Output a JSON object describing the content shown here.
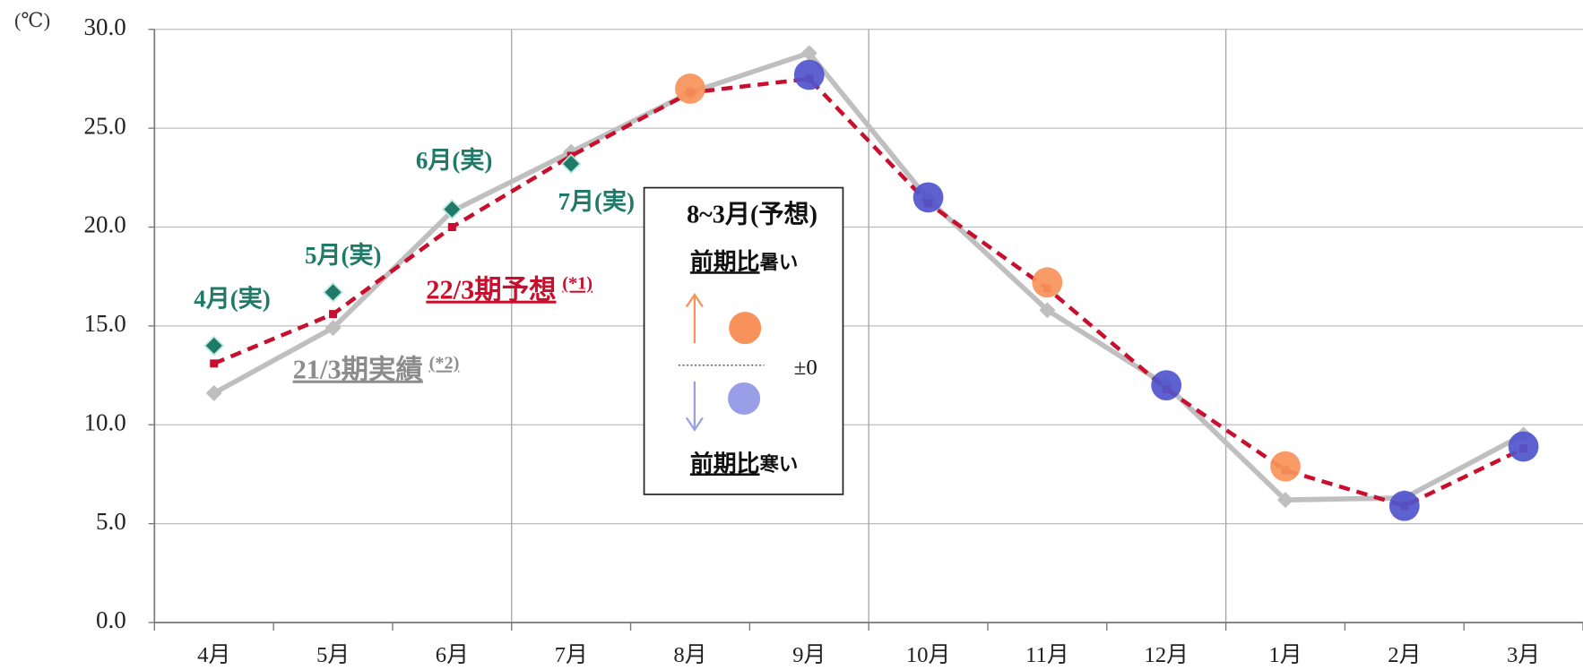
{
  "chart_data": {
    "type": "line",
    "unit_label": "(℃)",
    "categories": [
      "4月",
      "5月",
      "6月",
      "7月",
      "8月",
      "9月",
      "10月",
      "11月",
      "12月",
      "1月",
      "2月",
      "3月"
    ],
    "series": [
      {
        "name": "21/3期実績",
        "note": "(*2)",
        "color": "#bfbfbf",
        "dashed": false,
        "values": [
          11.6,
          14.9,
          20.8,
          23.8,
          26.8,
          28.8,
          21.4,
          15.8,
          12.0,
          6.2,
          6.3,
          9.5
        ]
      },
      {
        "name": "22/3期予想",
        "note": "(*1)",
        "color": "#c8102e",
        "dashed": true,
        "values": [
          13.1,
          15.6,
          20.0,
          23.6,
          26.8,
          27.5,
          21.2,
          16.9,
          11.8,
          7.7,
          5.9,
          8.8
        ]
      }
    ],
    "actual_marks": {
      "color": "#1f7a68",
      "values": [
        14.0,
        16.7,
        20.9,
        23.2,
        null,
        null,
        null,
        null,
        null,
        null,
        null,
        null
      ],
      "labels": [
        "4月(実)",
        "5月(実)",
        "6月(実)",
        "7月(実)",
        null,
        null,
        null,
        null,
        null,
        null,
        null,
        null
      ]
    },
    "forecast_marks": {
      "values": [
        null,
        null,
        null,
        null,
        27.0,
        27.7,
        21.5,
        17.2,
        12.0,
        7.9,
        5.9,
        8.9
      ],
      "colors": [
        null,
        null,
        null,
        null,
        "#f7935a",
        "#4f55cc",
        "#4f55cc",
        "#f7935a",
        "#4f55cc",
        "#f7935a",
        "#4f55cc",
        "#4f55cc"
      ]
    },
    "legend": {
      "title": "8~3月(予想)",
      "warm": {
        "prefix": "前期比",
        "text": "暑い",
        "color": "#f7935a"
      },
      "zero": "±0",
      "cold": {
        "prefix": "前期比",
        "text": "寒い",
        "color": "#9a9ee6"
      }
    },
    "ylim": [
      0,
      30
    ],
    "yticks": [
      {
        "value": 0,
        "label": "0.0"
      },
      {
        "value": 5,
        "label": "5.0"
      },
      {
        "value": 10,
        "label": "10.0"
      },
      {
        "value": 15,
        "label": "15.0"
      },
      {
        "value": 20,
        "label": "20.0"
      },
      {
        "value": 25,
        "label": "25.0"
      },
      {
        "value": 30,
        "label": "30.0"
      }
    ],
    "grid": true
  }
}
